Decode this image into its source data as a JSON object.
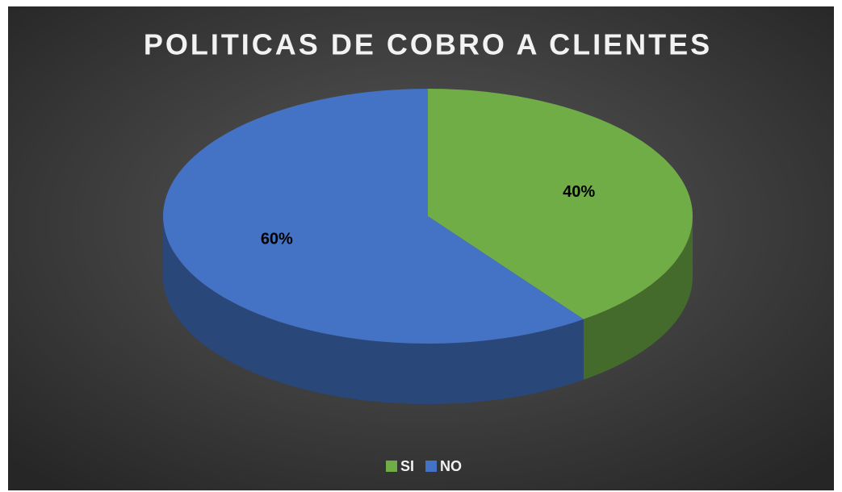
{
  "chart_data": {
    "type": "pie3d",
    "title": "POLITICAS DE COBRO A CLIENTES",
    "categories": [
      "SI",
      "NO"
    ],
    "values": [
      40,
      60
    ],
    "value_labels": [
      "40%",
      "60%"
    ],
    "colors": [
      "#70ad47",
      "#4472c4"
    ],
    "legend": "bottom"
  }
}
